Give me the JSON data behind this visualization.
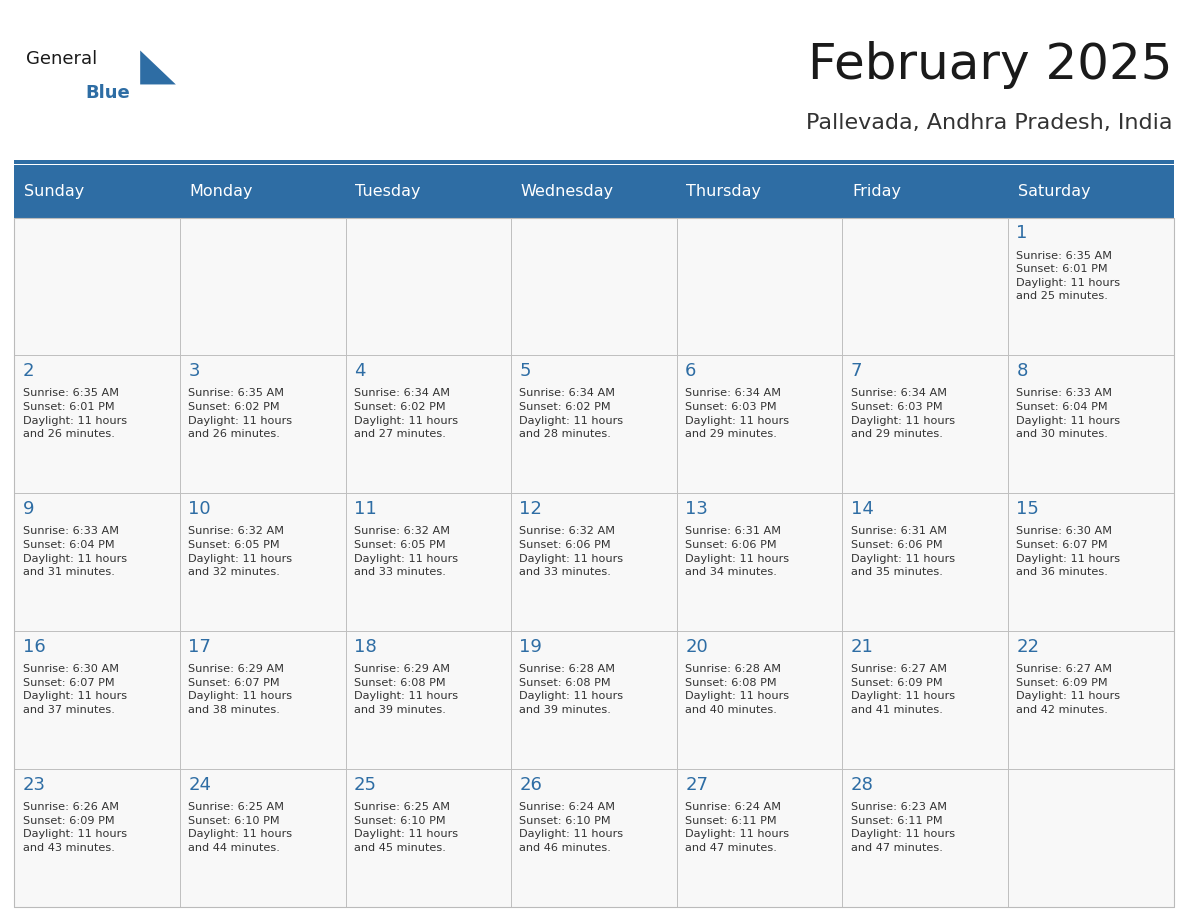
{
  "title": "February 2025",
  "subtitle": "Pallevada, Andhra Pradesh, India",
  "header_bg": "#2E6DA4",
  "header_text_color": "#FFFFFF",
  "day_headers": [
    "Sunday",
    "Monday",
    "Tuesday",
    "Wednesday",
    "Thursday",
    "Friday",
    "Saturday"
  ],
  "title_color": "#1a1a1a",
  "subtitle_color": "#333333",
  "day_num_color": "#2E6DA4",
  "cell_text_color": "#333333",
  "grid_color": "#BBBBBB",
  "logo_general_color": "#1a1a1a",
  "logo_blue_color": "#2E6DA4",
  "cell_bg": "#F8F8F8",
  "calendar": [
    [
      null,
      null,
      null,
      null,
      null,
      null,
      {
        "day": 1,
        "sunrise": "6:35 AM",
        "sunset": "6:01 PM",
        "daylight": "11 hours and 25 minutes."
      }
    ],
    [
      {
        "day": 2,
        "sunrise": "6:35 AM",
        "sunset": "6:01 PM",
        "daylight": "11 hours and 26 minutes."
      },
      {
        "day": 3,
        "sunrise": "6:35 AM",
        "sunset": "6:02 PM",
        "daylight": "11 hours and 26 minutes."
      },
      {
        "day": 4,
        "sunrise": "6:34 AM",
        "sunset": "6:02 PM",
        "daylight": "11 hours and 27 minutes."
      },
      {
        "day": 5,
        "sunrise": "6:34 AM",
        "sunset": "6:02 PM",
        "daylight": "11 hours and 28 minutes."
      },
      {
        "day": 6,
        "sunrise": "6:34 AM",
        "sunset": "6:03 PM",
        "daylight": "11 hours and 29 minutes."
      },
      {
        "day": 7,
        "sunrise": "6:34 AM",
        "sunset": "6:03 PM",
        "daylight": "11 hours and 29 minutes."
      },
      {
        "day": 8,
        "sunrise": "6:33 AM",
        "sunset": "6:04 PM",
        "daylight": "11 hours and 30 minutes."
      }
    ],
    [
      {
        "day": 9,
        "sunrise": "6:33 AM",
        "sunset": "6:04 PM",
        "daylight": "11 hours and 31 minutes."
      },
      {
        "day": 10,
        "sunrise": "6:32 AM",
        "sunset": "6:05 PM",
        "daylight": "11 hours and 32 minutes."
      },
      {
        "day": 11,
        "sunrise": "6:32 AM",
        "sunset": "6:05 PM",
        "daylight": "11 hours and 33 minutes."
      },
      {
        "day": 12,
        "sunrise": "6:32 AM",
        "sunset": "6:06 PM",
        "daylight": "11 hours and 33 minutes."
      },
      {
        "day": 13,
        "sunrise": "6:31 AM",
        "sunset": "6:06 PM",
        "daylight": "11 hours and 34 minutes."
      },
      {
        "day": 14,
        "sunrise": "6:31 AM",
        "sunset": "6:06 PM",
        "daylight": "11 hours and 35 minutes."
      },
      {
        "day": 15,
        "sunrise": "6:30 AM",
        "sunset": "6:07 PM",
        "daylight": "11 hours and 36 minutes."
      }
    ],
    [
      {
        "day": 16,
        "sunrise": "6:30 AM",
        "sunset": "6:07 PM",
        "daylight": "11 hours and 37 minutes."
      },
      {
        "day": 17,
        "sunrise": "6:29 AM",
        "sunset": "6:07 PM",
        "daylight": "11 hours and 38 minutes."
      },
      {
        "day": 18,
        "sunrise": "6:29 AM",
        "sunset": "6:08 PM",
        "daylight": "11 hours and 39 minutes."
      },
      {
        "day": 19,
        "sunrise": "6:28 AM",
        "sunset": "6:08 PM",
        "daylight": "11 hours and 39 minutes."
      },
      {
        "day": 20,
        "sunrise": "6:28 AM",
        "sunset": "6:08 PM",
        "daylight": "11 hours and 40 minutes."
      },
      {
        "day": 21,
        "sunrise": "6:27 AM",
        "sunset": "6:09 PM",
        "daylight": "11 hours and 41 minutes."
      },
      {
        "day": 22,
        "sunrise": "6:27 AM",
        "sunset": "6:09 PM",
        "daylight": "11 hours and 42 minutes."
      }
    ],
    [
      {
        "day": 23,
        "sunrise": "6:26 AM",
        "sunset": "6:09 PM",
        "daylight": "11 hours and 43 minutes."
      },
      {
        "day": 24,
        "sunrise": "6:25 AM",
        "sunset": "6:10 PM",
        "daylight": "11 hours and 44 minutes."
      },
      {
        "day": 25,
        "sunrise": "6:25 AM",
        "sunset": "6:10 PM",
        "daylight": "11 hours and 45 minutes."
      },
      {
        "day": 26,
        "sunrise": "6:24 AM",
        "sunset": "6:10 PM",
        "daylight": "11 hours and 46 minutes."
      },
      {
        "day": 27,
        "sunrise": "6:24 AM",
        "sunset": "6:11 PM",
        "daylight": "11 hours and 47 minutes."
      },
      {
        "day": 28,
        "sunrise": "6:23 AM",
        "sunset": "6:11 PM",
        "daylight": "11 hours and 47 minutes."
      },
      null
    ]
  ]
}
